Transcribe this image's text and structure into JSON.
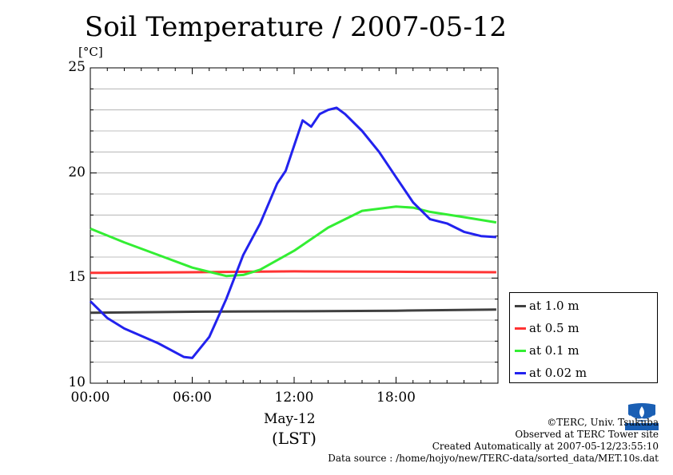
{
  "chart_data": {
    "type": "line",
    "title": "Soil Temperature / 2007-05-12",
    "ylabel": "[°C]",
    "ylim": [
      10,
      25
    ],
    "yticks": [
      10,
      15,
      20,
      25
    ],
    "xlim": [
      0,
      24
    ],
    "xticks": [
      "00:00",
      "06:00",
      "12:00",
      "18:00"
    ],
    "xlabel_date": "May-12",
    "xlabel_zone": "(LST)",
    "grid": true,
    "legend_position": "lower-right outside",
    "series": [
      {
        "name": "at 1.0 m",
        "color": "#404040",
        "x": [
          0,
          6,
          12,
          18,
          23.9
        ],
        "y": [
          13.35,
          13.4,
          13.42,
          13.45,
          13.5
        ]
      },
      {
        "name": "at 0.5 m",
        "color": "#ff3333",
        "x": [
          0,
          6,
          12,
          18,
          23.9
        ],
        "y": [
          15.25,
          15.28,
          15.32,
          15.3,
          15.28
        ]
      },
      {
        "name": "at 0.1 m",
        "color": "#33ee33",
        "x": [
          0,
          2,
          4,
          6,
          8,
          9,
          10,
          12,
          14,
          16,
          18,
          19,
          20,
          22,
          23.9
        ],
        "y": [
          17.35,
          16.7,
          16.1,
          15.5,
          15.1,
          15.15,
          15.4,
          16.3,
          17.4,
          18.2,
          18.4,
          18.35,
          18.15,
          17.9,
          17.65
        ]
      },
      {
        "name": "at 0.02 m",
        "color": "#2222ee",
        "x": [
          0,
          1,
          2,
          4,
          5.5,
          6,
          7,
          8,
          9,
          10,
          11,
          11.5,
          12,
          12.5,
          13,
          13.5,
          14,
          14.5,
          15,
          16,
          17,
          18,
          19,
          20,
          21,
          22,
          23,
          23.9
        ],
        "y": [
          13.9,
          13.1,
          12.6,
          11.9,
          11.25,
          11.2,
          12.2,
          14.0,
          16.1,
          17.6,
          19.5,
          20.1,
          21.3,
          22.5,
          22.2,
          22.8,
          23.0,
          23.1,
          22.8,
          22.0,
          21.0,
          19.8,
          18.6,
          17.8,
          17.6,
          17.2,
          17.0,
          16.95
        ]
      }
    ]
  },
  "credits": {
    "org": "©TERC, Univ. Tsukuba",
    "site": "Observed at TERC Tower site",
    "created": "Created Automatically at 2007-05-12/23:55:10",
    "source": "Data source : /home/hojyo/new/TERC-data/sorted_data/MET.10s.dat"
  },
  "logo": {
    "text": "TERC",
    "color": "#1a5fb4"
  }
}
